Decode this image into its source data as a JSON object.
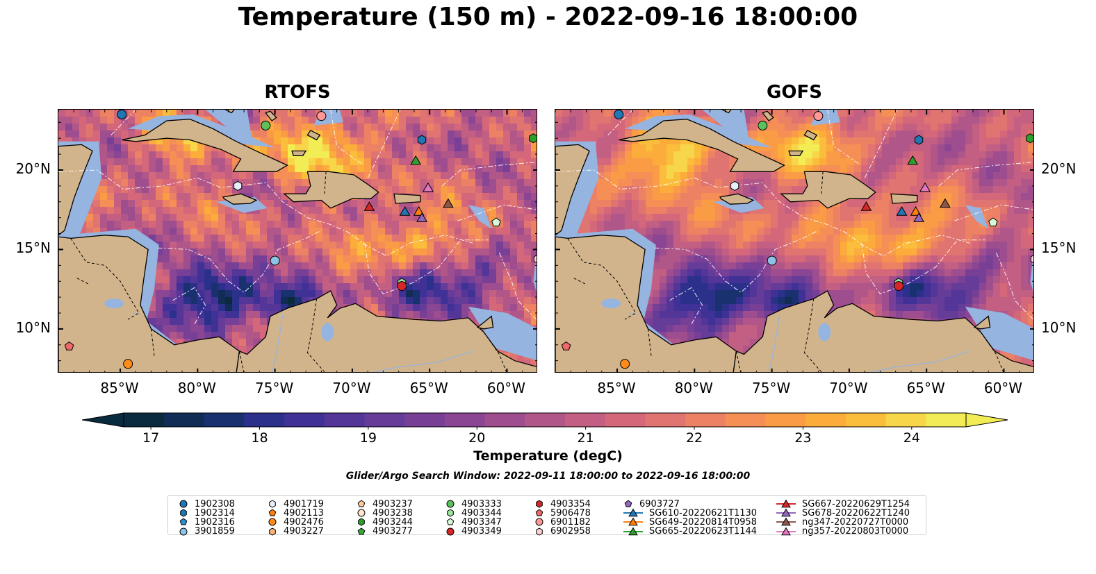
{
  "figure": {
    "title": "Temperature (150 m) - 2022-09-16 18:00:00",
    "search_window": "Glider/Argo Search Window: 2022-09-11 18:00:00 to 2022-09-16 18:00:00"
  },
  "panels": [
    {
      "title": "RTOFS"
    },
    {
      "title": "GOFS"
    }
  ],
  "axes": {
    "lon_range": [
      -89,
      -58
    ],
    "lat_range": [
      7.2,
      23.8
    ],
    "lon_ticks": [
      "85°W",
      "80°W",
      "75°W",
      "70°W",
      "65°W",
      "60°W"
    ],
    "lon_tick_values": [
      -85,
      -80,
      -75,
      -70,
      -65,
      -60
    ],
    "lat_ticks": [
      "20°N",
      "15°N",
      "10°N"
    ],
    "lat_tick_values": [
      20,
      15,
      10
    ]
  },
  "colorbar": {
    "label": "Temperature (degC)",
    "ticks": [
      "17",
      "18",
      "19",
      "20",
      "21",
      "22",
      "23",
      "24"
    ],
    "tick_values": [
      17,
      18,
      19,
      20,
      21,
      22,
      23,
      24
    ],
    "range": [
      16.75,
      24.5
    ],
    "extend": "both",
    "colors": [
      "#0a2a3e",
      "#112d55",
      "#1a3170",
      "#2b318a",
      "#3f3196",
      "#543598",
      "#663c99",
      "#783f97",
      "#8b4693",
      "#9e4d8f",
      "#b15689",
      "#c35f82",
      "#d4687a",
      "#e07471",
      "#ec8164",
      "#f58f55",
      "#fa9c45",
      "#fbac3a",
      "#fbbe3c",
      "#f8d649",
      "#f2ec55"
    ]
  },
  "legend": {
    "items": [
      {
        "label": "1902308",
        "shape": "circle",
        "color": "#1f77b4"
      },
      {
        "label": "1902314",
        "shape": "hexagon",
        "color": "#1f77b4"
      },
      {
        "label": "1902316",
        "shape": "pentagon",
        "color": "#2c8fd0"
      },
      {
        "label": "3901859",
        "shape": "circle",
        "color": "#8ec3e8"
      },
      {
        "label": "4901719",
        "shape": "hexagon",
        "color": "#e6f0fb"
      },
      {
        "label": "4902113",
        "shape": "pentagon",
        "color": "#ff7f0e"
      },
      {
        "label": "4902476",
        "shape": "circle",
        "color": "#ff8c1a"
      },
      {
        "label": "4903227",
        "shape": "hexagon",
        "color": "#ffb27a"
      },
      {
        "label": "4903237",
        "shape": "pentagon",
        "color": "#ffc896"
      },
      {
        "label": "4903238",
        "shape": "circle",
        "color": "#ffe4cc"
      },
      {
        "label": "4903244",
        "shape": "hexagon",
        "color": "#2ca02c"
      },
      {
        "label": "4903277",
        "shape": "pentagon",
        "color": "#39a83a"
      },
      {
        "label": "4903333",
        "shape": "circle",
        "color": "#5cc05c"
      },
      {
        "label": "4903344",
        "shape": "hexagon",
        "color": "#9be49b"
      },
      {
        "label": "4903347",
        "shape": "pentagon",
        "color": "#d8f7d8"
      },
      {
        "label": "4903349",
        "shape": "circle",
        "color": "#d62728"
      },
      {
        "label": "4903354",
        "shape": "hexagon",
        "color": "#d62728"
      },
      {
        "label": "5906478",
        "shape": "pentagon",
        "color": "#f0686a"
      },
      {
        "label": "6901182",
        "shape": "circle",
        "color": "#ff9896"
      },
      {
        "label": "6902958",
        "shape": "hexagon",
        "color": "#ffd0cf"
      },
      {
        "label": "6903727",
        "shape": "pentagon",
        "color": "#9467bd"
      },
      {
        "label": "SG610-20220621T1130",
        "shape": "triangle-line",
        "color": "#1f77b4"
      },
      {
        "label": "SG649-20220814T0958",
        "shape": "triangle-line",
        "color": "#ff7f0e"
      },
      {
        "label": "SG665-20220623T1144",
        "shape": "triangle-line",
        "color": "#2ca02c"
      },
      {
        "label": "SG667-20220629T1254",
        "shape": "triangle-line",
        "color": "#d62728"
      },
      {
        "label": "SG678-20220622T1240",
        "shape": "triangle-line",
        "color": "#9467bd"
      },
      {
        "label": "ng347-20220727T0000",
        "shape": "triangle-line",
        "color": "#8c564b"
      },
      {
        "label": "ng357-20220803T0000",
        "shape": "triangle-line",
        "color": "#e377c2"
      }
    ]
  },
  "markers": [
    {
      "id": "1902308",
      "lon": -84.9,
      "lat": 23.5
    },
    {
      "id": "4903244",
      "lon": -58.3,
      "lat": 22.0
    },
    {
      "id": "4903333",
      "lon": -75.6,
      "lat": 22.8
    },
    {
      "id": "6901182",
      "lon": -72.0,
      "lat": 23.4
    },
    {
      "id": "1902314",
      "lon": -65.5,
      "lat": 21.9
    },
    {
      "id": "4901719",
      "lon": -77.4,
      "lat": 19.0
    },
    {
      "id": "4903347",
      "lon": -60.7,
      "lat": 16.7
    },
    {
      "id": "3901859",
      "lon": -75.0,
      "lat": 14.3
    },
    {
      "id": "6902958",
      "lon": -58.0,
      "lat": 14.4
    },
    {
      "id": "4903344",
      "lon": -66.8,
      "lat": 12.9
    },
    {
      "id": "4903349",
      "lon": -66.8,
      "lat": 12.7
    },
    {
      "id": "5906478",
      "lon": -88.3,
      "lat": 8.9
    },
    {
      "id": "4902476",
      "lon": -84.5,
      "lat": 7.8
    },
    {
      "id": "SG665-20220623T1144",
      "lon": -65.9,
      "lat": 20.6
    },
    {
      "id": "ng357-20220803T0000",
      "lon": -65.1,
      "lat": 18.9
    },
    {
      "id": "SG667-20220629T1254",
      "lon": -68.9,
      "lat": 17.7
    },
    {
      "id": "SG610-20220621T1130",
      "lon": -66.6,
      "lat": 17.4
    },
    {
      "id": "SG649-20220814T0958",
      "lon": -65.7,
      "lat": 17.4
    },
    {
      "id": "SG678-20220622T1240",
      "lon": -65.5,
      "lat": 17.0
    },
    {
      "id": "ng347-20220727T0000",
      "lon": -63.8,
      "lat": 17.9
    }
  ]
}
